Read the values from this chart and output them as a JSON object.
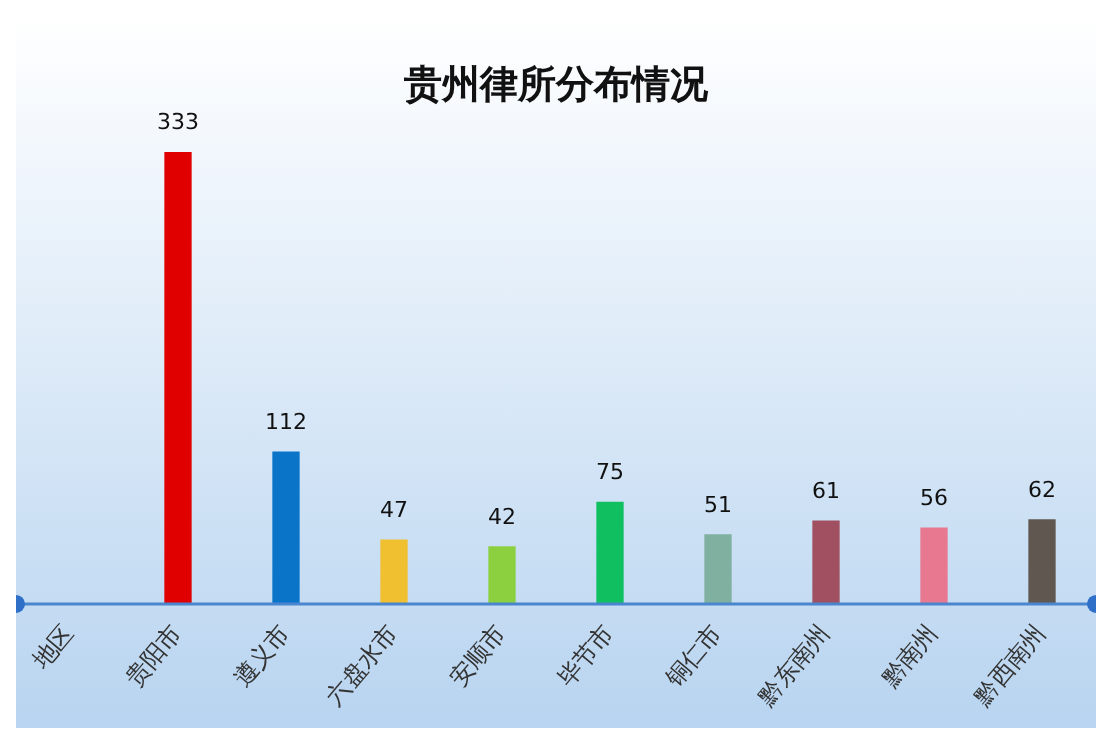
{
  "chart_data": {
    "type": "bar",
    "title": "贵州律所分布情况",
    "categories": [
      "地区",
      "贵阳市",
      "遵义市",
      "六盘水市",
      "安顺市",
      "毕节市",
      "铜仁市",
      "黔东南州",
      "黔南州",
      "黔西南州"
    ],
    "values": [
      null,
      333,
      112,
      47,
      42,
      75,
      51,
      61,
      56,
      62
    ],
    "colors": [
      "#888888",
      "#e00000",
      "#0a74c8",
      "#f0c030",
      "#8cd040",
      "#10c060",
      "#80b0a0",
      "#a05060",
      "#e87890",
      "#605850"
    ],
    "data_labels": true,
    "grid": false,
    "legend": false
  }
}
